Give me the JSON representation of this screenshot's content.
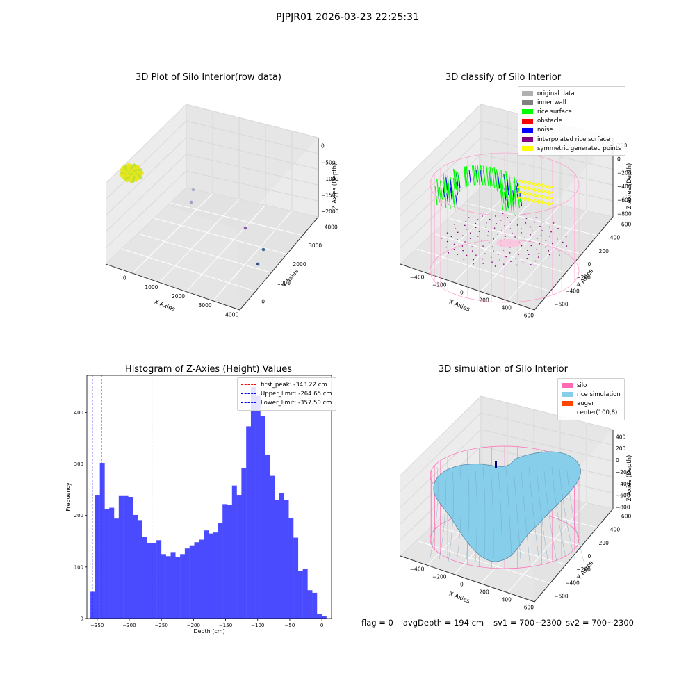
{
  "suptitle": "PJPJR01 2026-03-23 22:25:31",
  "status": {
    "flag": "flag = 0",
    "avg_depth": "avgDepth = 194 cm",
    "sv1": "sv1 = 700~2300",
    "sv2": "sv2 = 700~2300"
  },
  "colors": {
    "histogram_bar": "#4a4aff",
    "first_peak_line": "#ff0000",
    "limit_lines": "#0000ff",
    "silo_wire": "#ff69b4",
    "rice_simulation": "#87ceeb",
    "auger": "#ff4500",
    "rice_surface": "#00ff00",
    "noise": "#0000ff",
    "symmetric_points": "#ffff00",
    "interpolated_rice_surface": "#800080"
  },
  "chart_data": [
    {
      "id": "raw3d",
      "type": "scatter",
      "title": "3D Plot of Silo Interior(row data)",
      "xlabel": "X Axies",
      "ylabel": "Y Axies",
      "zlabel": "Z Axies (Depth)",
      "x_ticks": [
        "0",
        "1000",
        "2000",
        "3000",
        "4000"
      ],
      "y_ticks": [
        "0",
        "1000",
        "2000",
        "3000",
        "4000"
      ],
      "z_ticks": [
        "0",
        "−500",
        "−1000",
        "−1500",
        "−2000"
      ],
      "xlim": [
        -500,
        4200
      ],
      "ylim": [
        -500,
        4200
      ],
      "zlim": [
        -2300,
        100
      ],
      "points": [
        {
          "x": 3900,
          "y": 1500,
          "z": -1900
        },
        {
          "x": 3950,
          "y": 1900,
          "z": -1800
        },
        {
          "x": 3600,
          "y": 2600,
          "z": -1700
        },
        {
          "x": 2700,
          "y": 3800,
          "z": -1900
        },
        {
          "x": 2600,
          "y": 3600,
          "z": -2000
        }
      ]
    },
    {
      "id": "classify3d",
      "type": "scatter",
      "title": "3D classify of Silo Interior",
      "xlabel": "X Axies",
      "ylabel": "Y Axies",
      "zlabel": "Z Axies (Depth)",
      "x_ticks": [
        "−400",
        "−200",
        "0",
        "200",
        "400",
        "600"
      ],
      "y_ticks": [
        "−600",
        "−400",
        "−200",
        "0",
        "200",
        "400",
        "600"
      ],
      "z_ticks": [
        "200",
        "0",
        "−200",
        "−400",
        "−600",
        "−800"
      ],
      "legend": [
        {
          "label": "original data",
          "color": "#b0b0b0"
        },
        {
          "label": "inner wall",
          "color": "#808080"
        },
        {
          "label": "rice surface",
          "color": "#00ff00"
        },
        {
          "label": "obstacle",
          "color": "#ff0000"
        },
        {
          "label": "noise",
          "color": "#0000ff"
        },
        {
          "label": "interpolated rice surface",
          "color": "#800080"
        },
        {
          "label": "symmetric generated points",
          "color": "#ffff00"
        }
      ]
    },
    {
      "id": "histogram",
      "type": "bar",
      "title": "Histogram of Z-Axies (Height) Values",
      "xlabel": "Depth (cm)",
      "ylabel": "Frequency",
      "xlim": [
        -366,
        15
      ],
      "ylim": [
        0,
        472
      ],
      "x_ticks": [
        -350,
        -300,
        -250,
        -200,
        -150,
        -100,
        -50,
        0
      ],
      "x_tick_labels": [
        "−350",
        "−300",
        "−250",
        "−200",
        "−150",
        "−100",
        "−50",
        "0"
      ],
      "y_ticks": [
        0,
        100,
        200,
        300,
        400
      ],
      "bin_start": -360.5,
      "bin_width": 7.35,
      "values": [
        52,
        240,
        302,
        213,
        215,
        194,
        239,
        239,
        236,
        201,
        191,
        158,
        146,
        146,
        152,
        125,
        121,
        129,
        120,
        125,
        136,
        142,
        148,
        153,
        171,
        165,
        167,
        186,
        222,
        220,
        258,
        240,
        292,
        373,
        449,
        432,
        393,
        318,
        277,
        230,
        244,
        230,
        195,
        157,
        93,
        96,
        55,
        50,
        8,
        5
      ],
      "lines": [
        {
          "label": "first_peak: -343.22 cm",
          "x": -343.22,
          "color": "#ff0000"
        },
        {
          "label": "Upper_limit: -264.65 cm",
          "x": -264.65,
          "color": "#0000ff"
        },
        {
          "label": "Lower_limit: -357.50 cm",
          "x": -357.5,
          "color": "#0000ff"
        }
      ]
    },
    {
      "id": "simulation3d",
      "type": "area",
      "title": "3D simulation of Silo Interior",
      "xlabel": "X Axies",
      "ylabel": "Y Axies",
      "zlabel": "Z Axies (Depth)",
      "x_ticks": [
        "−400",
        "−200",
        "0",
        "200",
        "400",
        "600"
      ],
      "y_ticks": [
        "−600",
        "−400",
        "−200",
        "0",
        "200",
        "400",
        "600"
      ],
      "z_ticks": [
        "400",
        "200",
        "0",
        "−200",
        "−400",
        "−600",
        "−800"
      ],
      "legend": [
        {
          "label": "silo",
          "color": "#ff69b4"
        },
        {
          "label": "rice simulation",
          "color": "#87ceeb"
        },
        {
          "label": "auger",
          "color": "#ff4500"
        },
        {
          "label": "center(100,8)",
          "color": ""
        }
      ]
    }
  ]
}
